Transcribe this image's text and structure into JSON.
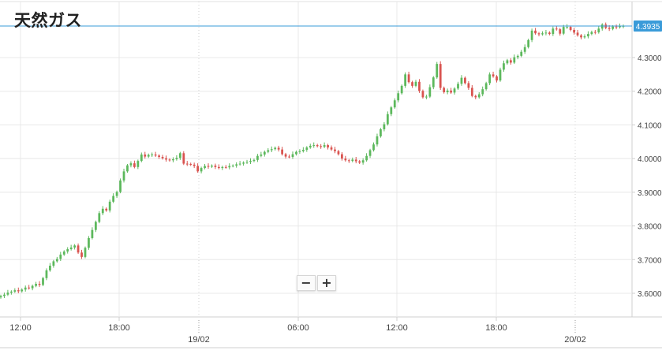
{
  "chart_data": {
    "type": "candlestick",
    "title": "天然ガス",
    "current_price": "4.3935",
    "y_ticks": [
      "4.3000",
      "4.2000",
      "4.1000",
      "4.0000",
      "3.9000",
      "3.8000",
      "3.7000",
      "3.6000"
    ],
    "y_tick_values": [
      4.3,
      4.2,
      4.1,
      4.0,
      3.9,
      3.8,
      3.7,
      3.6
    ],
    "ylim": [
      3.56,
      4.43
    ],
    "x_ticks": [
      "12:00",
      "18:00",
      "06:00",
      "12:00",
      "18:00"
    ],
    "date_ticks": [
      "19/02",
      "20/02"
    ],
    "colors": {
      "up": "#5cb85c",
      "down": "#d9534f",
      "grid": "#e8e8e8",
      "price_line": "#3a9bd9"
    },
    "grid": true,
    "candle_closes": [
      3.592,
      3.596,
      3.602,
      3.605,
      3.609,
      3.606,
      3.611,
      3.617,
      3.615,
      3.622,
      3.628,
      3.625,
      3.645,
      3.668,
      3.682,
      3.695,
      3.702,
      3.715,
      3.724,
      3.731,
      3.736,
      3.742,
      3.721,
      3.708,
      3.735,
      3.764,
      3.788,
      3.812,
      3.838,
      3.851,
      3.846,
      3.872,
      3.889,
      3.901,
      3.935,
      3.962,
      3.98,
      3.986,
      3.975,
      3.993,
      4.012,
      4.006,
      4.011,
      4.012,
      4.009,
      4.005,
      4.001,
      3.997,
      3.995,
      3.998,
      4.002,
      4.016,
      3.985,
      3.984,
      3.982,
      3.978,
      3.962,
      3.972,
      3.978,
      3.976,
      3.979,
      3.975,
      3.972,
      3.975,
      3.974,
      3.978,
      3.979,
      3.983,
      3.985,
      3.988,
      3.99,
      3.993,
      3.996,
      4.008,
      4.012,
      4.02,
      4.025,
      4.028,
      4.032,
      4.027,
      4.013,
      4.006,
      4.005,
      4.013,
      4.02,
      4.022,
      4.026,
      4.033,
      4.038,
      4.04,
      4.037,
      4.035,
      4.04,
      4.033,
      4.027,
      4.022,
      4.013,
      4.0,
      3.995,
      3.993,
      3.997,
      3.992,
      3.988,
      3.995,
      4.008,
      4.025,
      4.042,
      4.066,
      4.087,
      4.102,
      4.132,
      4.152,
      4.173,
      4.194,
      4.216,
      4.25,
      4.227,
      4.216,
      4.228,
      4.201,
      4.182,
      4.184,
      4.212,
      4.241,
      4.281,
      4.21,
      4.197,
      4.202,
      4.196,
      4.208,
      4.222,
      4.24,
      4.224,
      4.21,
      4.186,
      4.182,
      4.191,
      4.206,
      4.224,
      4.25,
      4.244,
      4.232,
      4.264,
      4.283,
      4.292,
      4.285,
      4.301,
      4.305,
      4.317,
      4.331,
      4.352,
      4.38,
      4.372,
      4.369,
      4.372,
      4.374,
      4.37,
      4.386,
      4.384,
      4.371,
      4.391,
      4.391,
      4.382,
      4.374,
      4.366,
      4.36,
      4.363,
      4.37,
      4.376,
      4.375,
      4.386,
      4.398,
      4.388,
      4.385,
      4.392,
      4.39,
      4.393,
      4.394
    ]
  },
  "zoom": {
    "out_label": "−",
    "in_label": "+"
  }
}
